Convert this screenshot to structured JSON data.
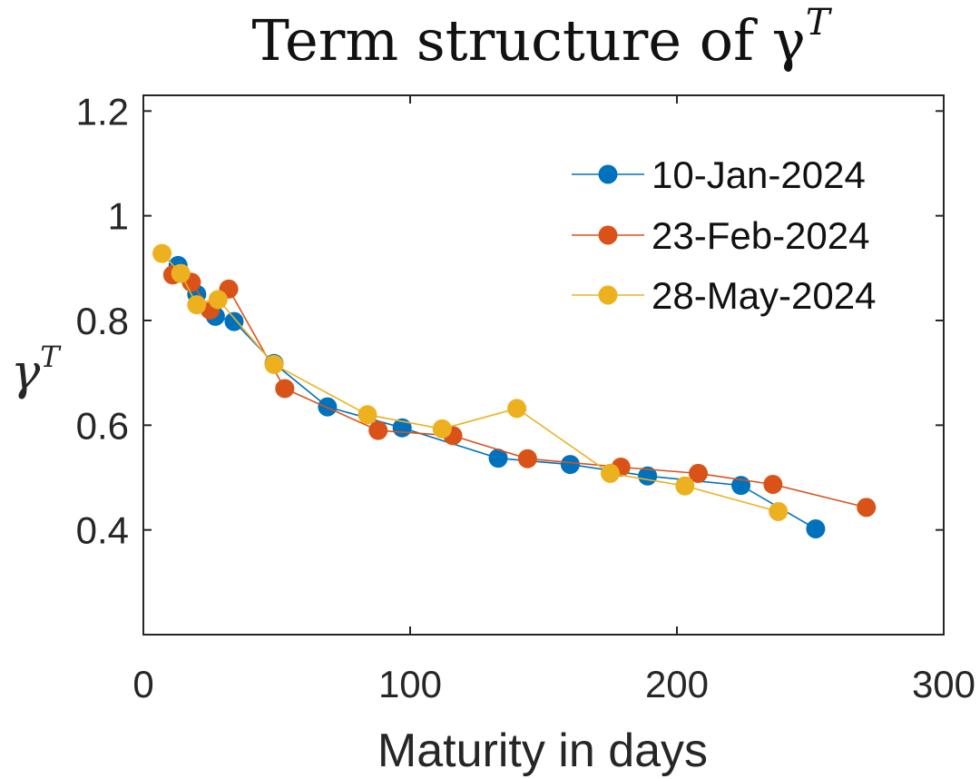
{
  "chart_data": {
    "type": "line",
    "title": "Term structure of γ",
    "title_superscript": "T",
    "xlabel": "Maturity in days",
    "ylabel": "γ",
    "ylabel_superscript": "T",
    "xlim": [
      0,
      300
    ],
    "ylim": [
      0.2,
      1.23
    ],
    "xticks": [
      0,
      100,
      200,
      300
    ],
    "xtick_labels": [
      "0",
      "100",
      "200",
      "300"
    ],
    "yticks": [
      0.4,
      0.6,
      0.8,
      1.0,
      1.2
    ],
    "ytick_labels": [
      "0.4",
      "0.6",
      "0.8",
      "1",
      "1.2"
    ],
    "legend_position": "top-right",
    "grid": false,
    "series": [
      {
        "name": "10-Jan-2024",
        "color": "#0072BD",
        "x": [
          13,
          20,
          27,
          34,
          49,
          69,
          97,
          133,
          160,
          189,
          224,
          252
        ],
        "y": [
          0.905,
          0.85,
          0.808,
          0.798,
          0.718,
          0.635,
          0.595,
          0.537,
          0.525,
          0.503,
          0.485,
          0.402
        ]
      },
      {
        "name": "23-Feb-2024",
        "color": "#D95319",
        "x": [
          11,
          18,
          25,
          32,
          53,
          88,
          116,
          144,
          179,
          208,
          236,
          271
        ],
        "y": [
          0.887,
          0.873,
          0.82,
          0.86,
          0.67,
          0.59,
          0.58,
          0.536,
          0.52,
          0.508,
          0.487,
          0.443
        ]
      },
      {
        "name": "28-May-2024",
        "color": "#EDB120",
        "x": [
          7,
          14,
          20,
          28,
          49,
          84,
          112,
          140,
          175,
          203,
          238
        ],
        "y": [
          0.928,
          0.89,
          0.83,
          0.84,
          0.716,
          0.62,
          0.593,
          0.632,
          0.508,
          0.484,
          0.435
        ]
      }
    ]
  }
}
